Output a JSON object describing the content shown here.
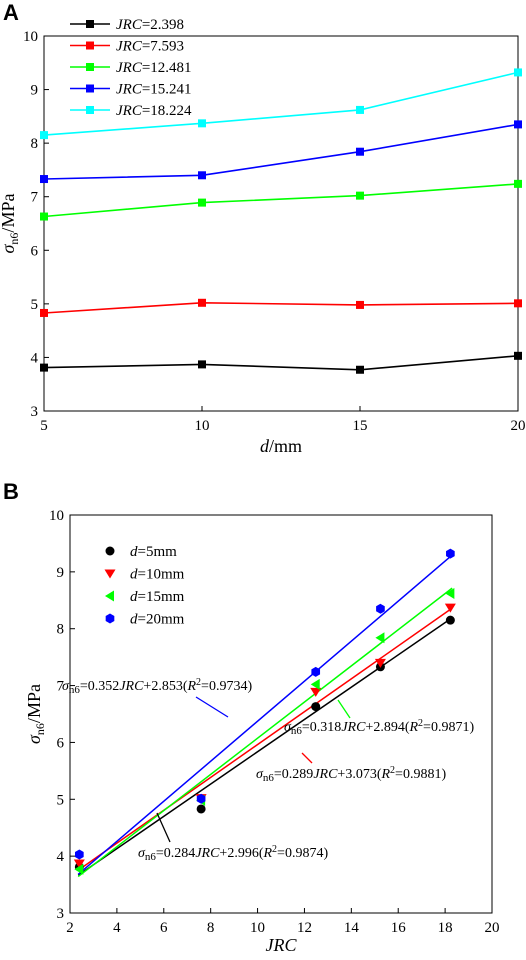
{
  "chart_data": [
    {
      "panel": "A",
      "type": "line",
      "xlabel_var": "d",
      "xlabel_unit": "/mm",
      "ylabel_var": "σ",
      "ylabel_sub": "n6",
      "ylabel_unit": "/MPa",
      "x": [
        5,
        10,
        15,
        20
      ],
      "xlim": [
        5,
        20
      ],
      "ylim": [
        3,
        10
      ],
      "xticks": [
        "5",
        "10",
        "15",
        "20"
      ],
      "yticks": [
        "3",
        "4",
        "5",
        "6",
        "7",
        "8",
        "9",
        "10"
      ],
      "legend_position": "top-left",
      "series": [
        {
          "legend_var": "JRC",
          "legend_val": "=2.398",
          "color": "#000000",
          "values": [
            3.81,
            3.87,
            3.77,
            4.03
          ]
        },
        {
          "legend_var": "JRC",
          "legend_val": "=7.593",
          "color": "#ff0000",
          "values": [
            4.83,
            5.02,
            4.98,
            5.01
          ]
        },
        {
          "legend_var": "JRC",
          "legend_val": "=12.481",
          "color": "#00ff00",
          "values": [
            6.63,
            6.89,
            7.02,
            7.24
          ]
        },
        {
          "legend_var": "JRC",
          "legend_val": "=15.241",
          "color": "#0000ff",
          "values": [
            7.33,
            7.4,
            7.84,
            8.35
          ]
        },
        {
          "legend_var": "JRC",
          "legend_val": "=18.224",
          "color": "#00ffff",
          "values": [
            8.15,
            8.37,
            8.62,
            9.32
          ]
        }
      ]
    },
    {
      "panel": "B",
      "type": "scatter",
      "xlabel_var": "JRC",
      "ylabel_var": "σ",
      "ylabel_sub": "n6",
      "ylabel_unit": "/MPa",
      "x": [
        2.398,
        7.593,
        12.481,
        15.241,
        18.224
      ],
      "xlim": [
        2,
        20
      ],
      "ylim": [
        3,
        10
      ],
      "xticks": [
        "2",
        "4",
        "6",
        "8",
        "10",
        "12",
        "14",
        "16",
        "18",
        "20"
      ],
      "yticks": [
        "3",
        "4",
        "5",
        "6",
        "7",
        "8",
        "9",
        "10"
      ],
      "legend_position": "upper-left",
      "series": [
        {
          "legend_var": "d",
          "legend_val": "=5mm",
          "color": "#000000",
          "marker": "circle",
          "values": [
            3.81,
            4.83,
            6.63,
            7.33,
            8.15
          ],
          "fit": {
            "slope": 0.284,
            "intercept": 2.996,
            "r2": "=0.9874",
            "eq_prefix": "=0.284",
            "eq_mid": "+2.996("
          }
        },
        {
          "legend_var": "d",
          "legend_val": "=10mm",
          "color": "#ff0000",
          "marker": "triangle-down",
          "values": [
            3.87,
            5.02,
            6.89,
            7.4,
            8.37
          ],
          "fit": {
            "slope": 0.289,
            "intercept": 3.073,
            "r2": "=0.9881",
            "eq_prefix": "=0.289",
            "eq_mid": "+3.073("
          }
        },
        {
          "legend_var": "d",
          "legend_val": "=15mm",
          "color": "#00ff00",
          "marker": "triangle-left",
          "values": [
            3.77,
            4.98,
            7.02,
            7.84,
            8.62
          ],
          "fit": {
            "slope": 0.318,
            "intercept": 2.894,
            "r2": "=0.9871",
            "eq_prefix": "=0.318",
            "eq_mid": "+2.894("
          }
        },
        {
          "legend_var": "d",
          "legend_val": "=20mm",
          "color": "#0000ff",
          "marker": "hexagon",
          "values": [
            4.03,
            5.01,
            7.24,
            8.35,
            9.32
          ],
          "fit": {
            "slope": 0.352,
            "intercept": 2.853,
            "r2": "=0.9734",
            "eq_prefix": "=0.352",
            "eq_mid": "+2.853("
          }
        }
      ],
      "eq_common": {
        "sigma": "σ",
        "sub": "n6",
        "jrc": "JRC",
        "r": "R",
        "sup": "2",
        "close": ")"
      }
    }
  ]
}
